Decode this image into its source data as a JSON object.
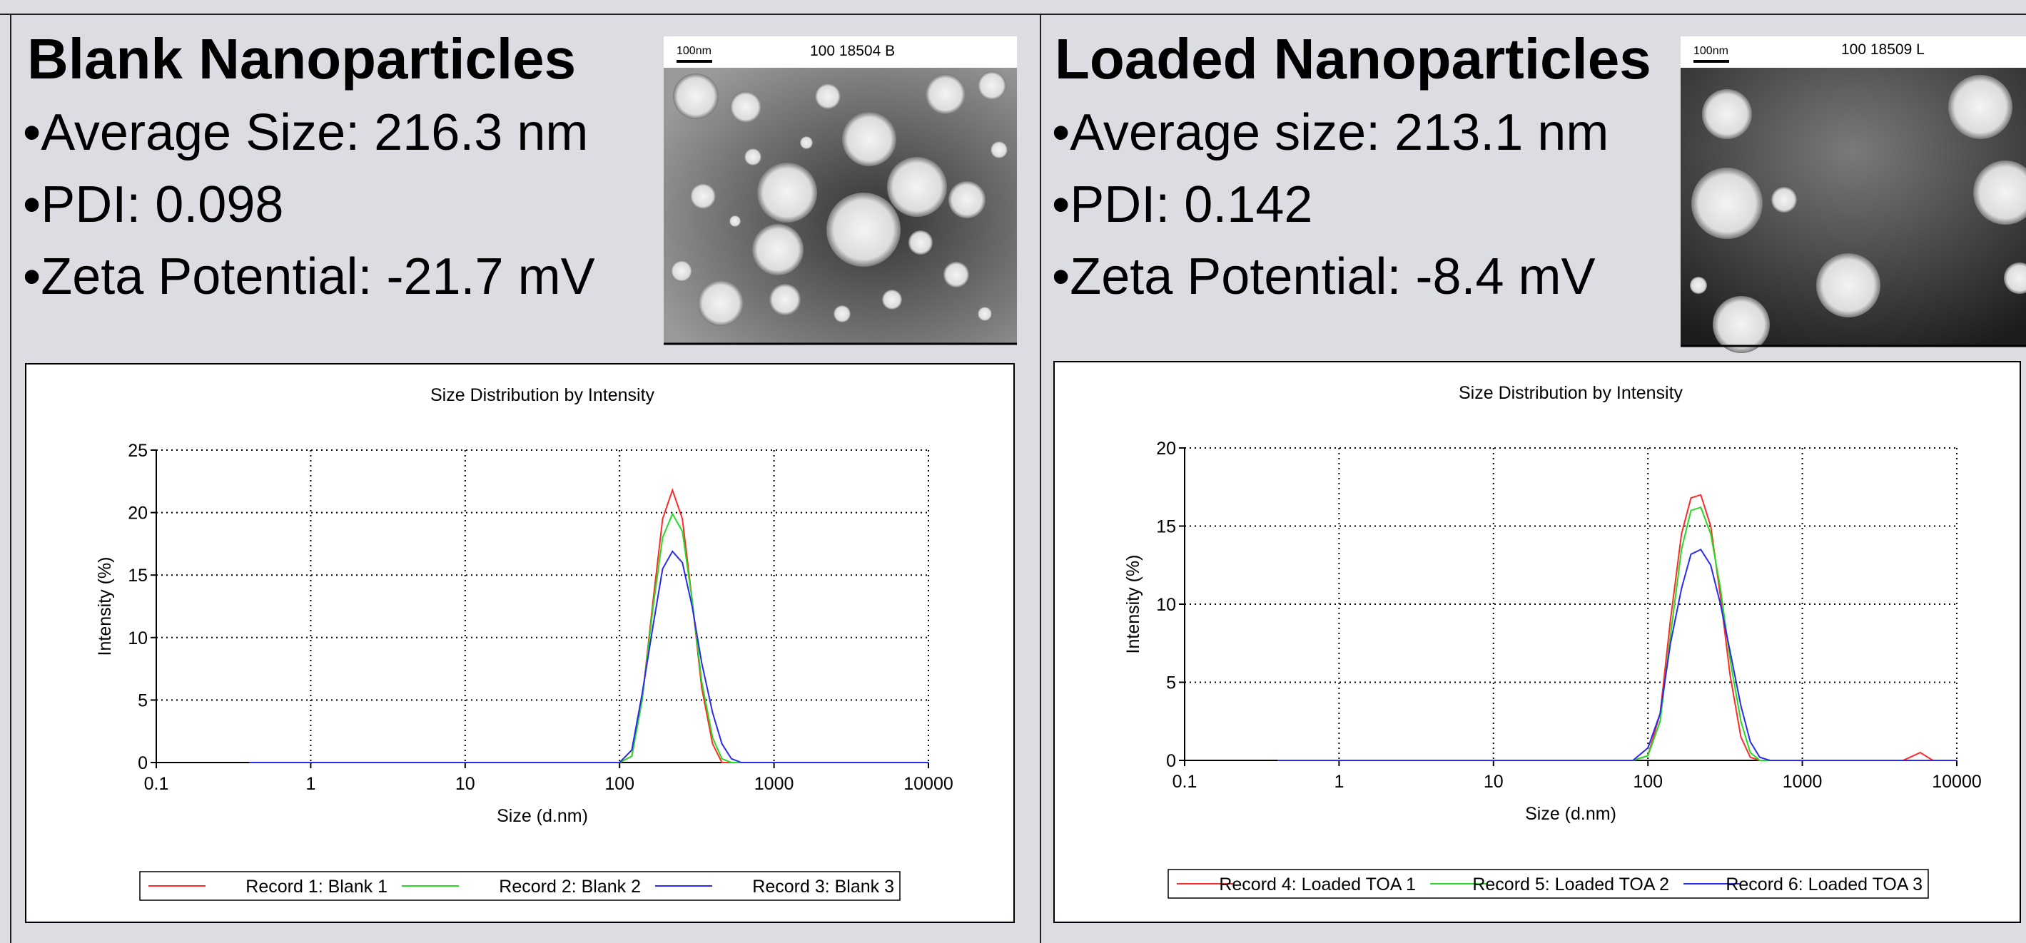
{
  "panels": [
    {
      "title": "Blank Nanoparticles",
      "bullets": [
        "•Average Size: 216.3 nm",
        "•PDI: 0.098",
        "•Zeta Potential: -21.7 mV"
      ],
      "image": {
        "scale": "100nm",
        "label": "100  18504 B"
      }
    },
    {
      "title": "Loaded Nanoparticles",
      "bullets": [
        "•Average size: 213.1 nm",
        "•PDI: 0.142",
        "•Zeta Potential: -8.4 mV"
      ],
      "image": {
        "scale": "100nm",
        "label": "100 18509 L"
      }
    }
  ],
  "chart_data": [
    {
      "type": "line",
      "title": "Size Distribution by Intensity",
      "x_label": "Size (d.nm)",
      "y_label": "Intensity (%)",
      "x_scale": "log",
      "xlim": [
        0.1,
        10000
      ],
      "xticks": [
        0.1,
        1,
        10,
        100,
        1000,
        10000
      ],
      "ylim": [
        0,
        25
      ],
      "yticks": [
        0,
        5,
        10,
        15,
        20,
        25
      ],
      "grid": true,
      "legend": "bottom",
      "x": [
        0.4,
        1,
        10,
        100,
        120,
        140,
        165,
        190,
        220,
        255,
        295,
        340,
        400,
        460,
        530,
        615,
        700,
        1000,
        5000,
        10000
      ],
      "series": [
        {
          "name": "Record 1: Blank 1",
          "color": "#ff2a2a",
          "values": [
            0,
            0,
            0,
            0,
            0.5,
            5,
            13,
            19.5,
            21.8,
            19.5,
            13,
            6,
            1.5,
            0,
            0,
            0,
            0,
            0,
            0,
            0
          ]
        },
        {
          "name": "Record 2: Blank 2",
          "color": "#22dd22",
          "values": [
            0,
            0,
            0,
            0,
            0.5,
            5,
            12.5,
            18,
            19.9,
            18.5,
            13,
            6.5,
            2,
            0.3,
            0,
            0,
            0,
            0,
            0,
            0
          ]
        },
        {
          "name": "Record 3: Blank 3",
          "color": "#2a2aee",
          "values": [
            0,
            0,
            0,
            0,
            1,
            5.5,
            11,
            15.5,
            16.9,
            16,
            12.5,
            8,
            4,
            1.5,
            0.3,
            0,
            0,
            0,
            0,
            0
          ]
        }
      ]
    },
    {
      "type": "line",
      "title": "Size Distribution by Intensity",
      "x_label": "Size (d.nm)",
      "y_label": "Intensity (%)",
      "x_scale": "log",
      "xlim": [
        0.1,
        10000
      ],
      "xticks": [
        0.1,
        1,
        10,
        100,
        1000,
        10000
      ],
      "ylim": [
        0,
        20
      ],
      "yticks": [
        0,
        5,
        10,
        15,
        20
      ],
      "grid": true,
      "legend": "bottom",
      "x": [
        0.4,
        1,
        10,
        80,
        100,
        120,
        140,
        165,
        190,
        220,
        255,
        295,
        340,
        400,
        460,
        530,
        615,
        700,
        1000,
        4500,
        5800,
        7000,
        10000
      ],
      "series": [
        {
          "name": "Record 4: Loaded TOA 1",
          "color": "#ff2a2a",
          "values": [
            0,
            0,
            0,
            0,
            0.3,
            3,
            9,
            14.5,
            16.8,
            17,
            15,
            10.5,
            5.5,
            1.5,
            0.2,
            0,
            0,
            0,
            0,
            0,
            0.5,
            0,
            0
          ]
        },
        {
          "name": "Record 5: Loaded TOA 2",
          "color": "#22dd22",
          "values": [
            0,
            0,
            0,
            0,
            0.3,
            2.5,
            8,
            13.5,
            16,
            16.2,
            14.5,
            11,
            6.5,
            2.5,
            0.5,
            0,
            0,
            0,
            0,
            0,
            0,
            0,
            0
          ]
        },
        {
          "name": "Record 6: Loaded TOA 3",
          "color": "#2a2aee",
          "values": [
            0,
            0,
            0,
            0,
            0.8,
            3,
            7.5,
            11,
            13.2,
            13.5,
            12.5,
            10,
            7,
            3.5,
            1.2,
            0.2,
            0,
            0,
            0,
            0,
            0,
            0,
            0
          ]
        }
      ]
    }
  ]
}
